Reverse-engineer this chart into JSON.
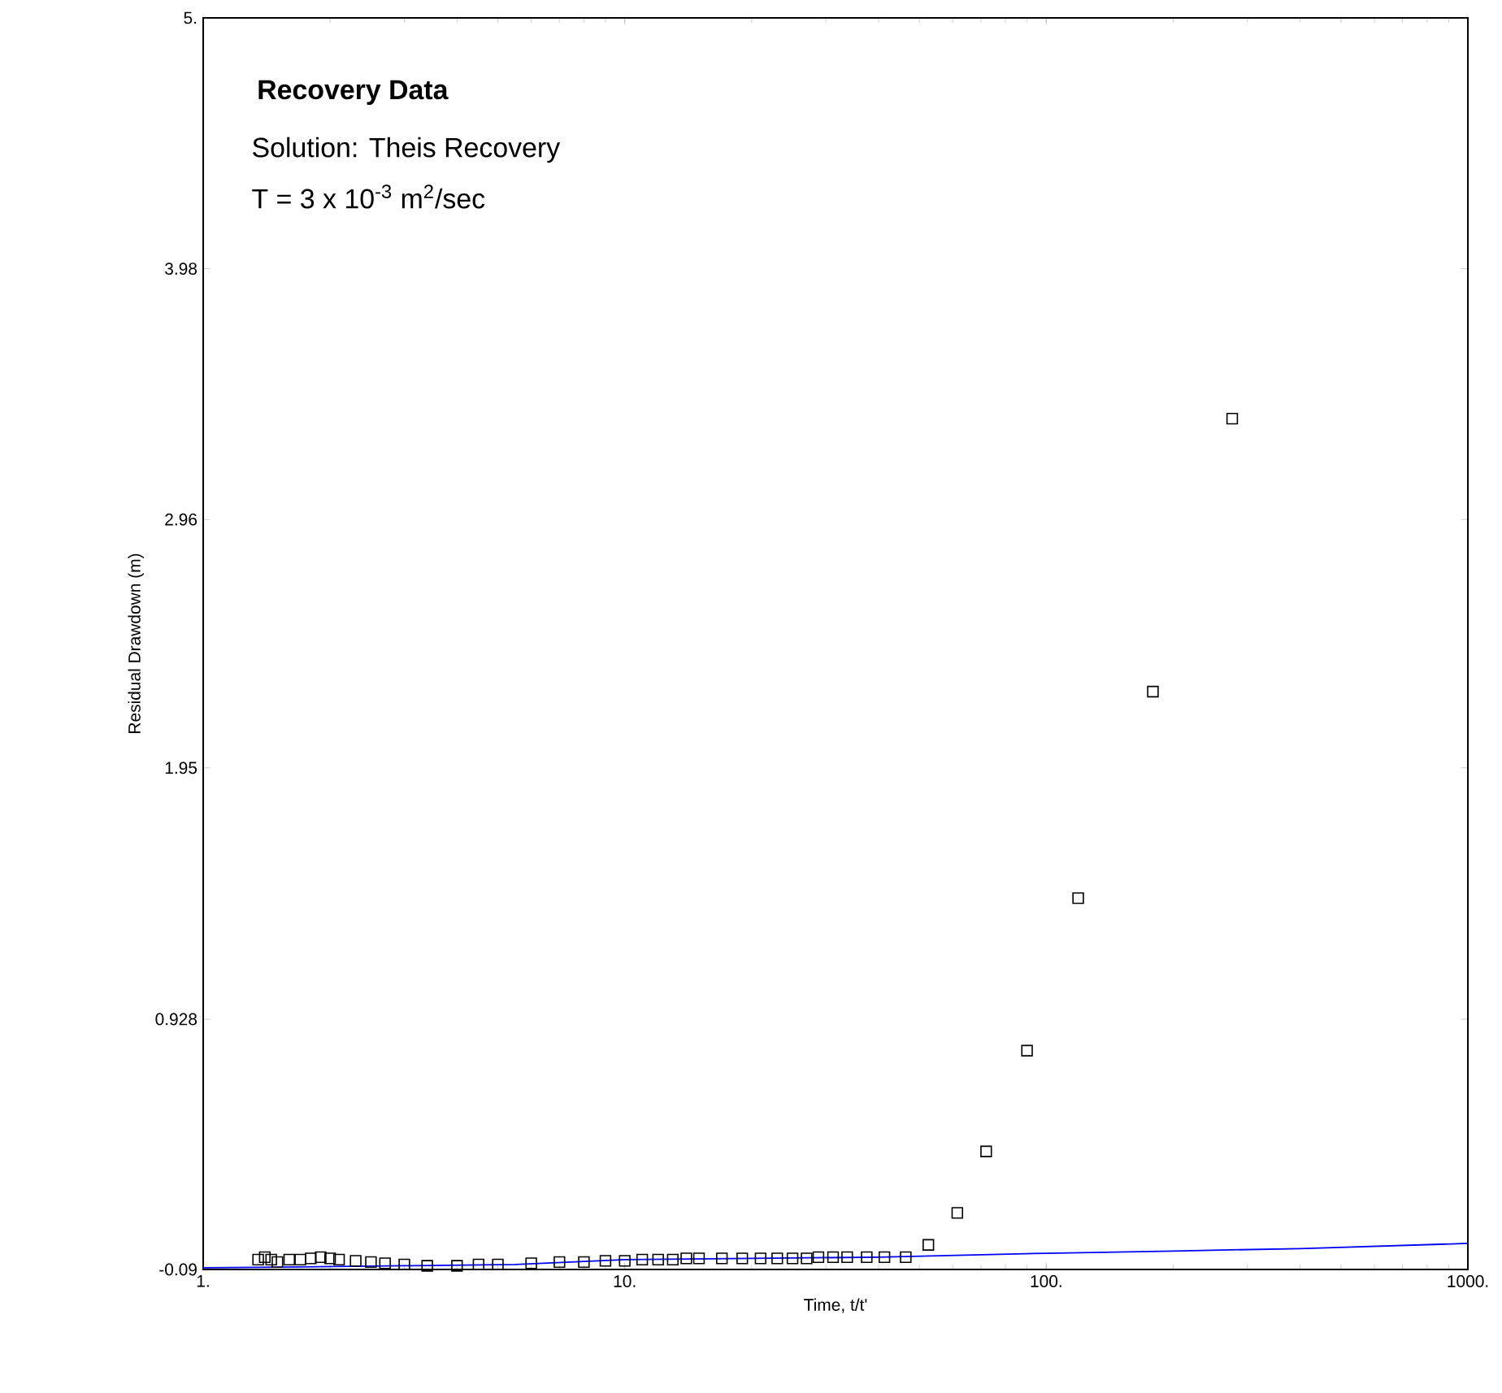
{
  "chart_data": {
    "type": "scatter",
    "title": "Recovery Data",
    "annotations": [
      "Solution: Theis Recovery",
      "T = 3 x 10$^{-3}$ m$^{2}$/sec"
    ],
    "xlabel": "Time, t/t'",
    "ylabel": "Residual Drawdown (m)",
    "log": "x",
    "grid": false,
    "xlim": [
      1,
      1000
    ],
    "ylim": [
      -0.09,
      5
    ],
    "xticks": [
      {
        "value": 1,
        "label": "1."
      },
      {
        "value": 10,
        "label": "10."
      },
      {
        "value": 100,
        "label": "100."
      },
      {
        "value": 1000,
        "label": "1000."
      }
    ],
    "yticks": [
      -0.09,
      0.928,
      1.95,
      2.96,
      3.98,
      {
        "value": 5,
        "label": "5."
      }
    ],
    "series": [
      {
        "type": "scatter",
        "marker": "square",
        "color": "#000000",
        "x": [
          1.35,
          1.4,
          1.45,
          1.5,
          1.6,
          1.7,
          1.8,
          1.9,
          2.0,
          2.1,
          2.3,
          2.5,
          2.7,
          3.0,
          3.4,
          4.0,
          4.5,
          5.0,
          6.0,
          7.0,
          8.0,
          9.0,
          10,
          11,
          12,
          13,
          14,
          15,
          17,
          19,
          21,
          23,
          25,
          27,
          28.8,
          31.2,
          33.7,
          37.5,
          41.3,
          46.4,
          52.5,
          61.5,
          72,
          90,
          119,
          179,
          276
        ],
        "values": [
          -0.05,
          -0.04,
          -0.05,
          -0.06,
          -0.05,
          -0.05,
          -0.045,
          -0.04,
          -0.045,
          -0.05,
          -0.055,
          -0.06,
          -0.065,
          -0.07,
          -0.075,
          -0.075,
          -0.07,
          -0.07,
          -0.065,
          -0.06,
          -0.06,
          -0.055,
          -0.055,
          -0.05,
          -0.05,
          -0.05,
          -0.045,
          -0.045,
          -0.045,
          -0.045,
          -0.045,
          -0.045,
          -0.045,
          -0.045,
          -0.04,
          -0.04,
          -0.04,
          -0.04,
          -0.04,
          -0.04,
          0.01,
          0.14,
          0.39,
          0.8,
          1.42,
          2.26,
          3.37
        ]
      },
      {
        "type": "line",
        "marker": "none",
        "color": "#0000ff",
        "x": [
          1,
          1.7,
          3,
          5.5,
          10,
          20,
          40,
          100,
          200,
          400,
          1000
        ],
        "values": [
          -0.083,
          -0.08,
          -0.075,
          -0.07,
          -0.05,
          -0.045,
          -0.04,
          -0.024,
          -0.015,
          -0.005,
          0.016
        ]
      }
    ]
  }
}
